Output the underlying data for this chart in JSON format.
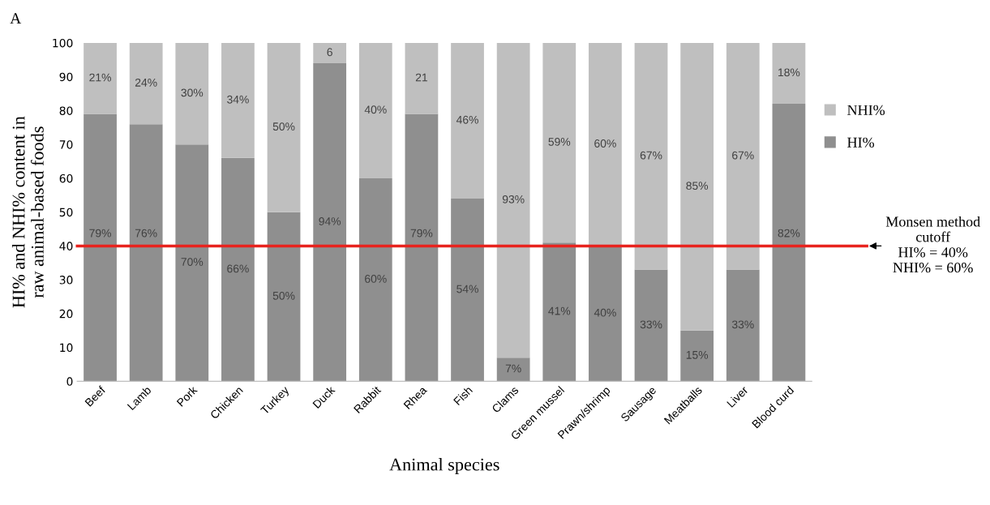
{
  "chart_data": {
    "type": "bar",
    "stacked": true,
    "ylabel": "HI% and NHI% content in\nraw animal-based foods",
    "xlabel": "Animal species",
    "categories": [
      "Beef",
      "Lamb",
      "Pork",
      "Chicken",
      "Turkey",
      "Duck",
      "Rabbit",
      "Rhea",
      "Fish",
      "Clams",
      "Green mussel",
      "Prawn/shrimp",
      "Sausage",
      "Meatballs",
      "Liver",
      "Blood curd"
    ],
    "series": [
      {
        "name": "HI%",
        "color": "#8f8f8f",
        "values": [
          79,
          76,
          70,
          66,
          50,
          94,
          60,
          79,
          54,
          7,
          41,
          40,
          33,
          15,
          33,
          82
        ],
        "value_labels": [
          "79%",
          "76%",
          "70%",
          "66%",
          "50%",
          "94%",
          "60%",
          "79%",
          "54%",
          "7%",
          "41%",
          "40%",
          "33%",
          "15%",
          "33%",
          "82%"
        ]
      },
      {
        "name": "NHI%",
        "color": "#bfbfbf",
        "values": [
          21,
          24,
          30,
          34,
          50,
          6,
          40,
          21,
          46,
          93,
          59,
          60,
          67,
          85,
          67,
          18
        ],
        "value_labels": [
          "21%",
          "24%",
          "30%",
          "34%",
          "50%",
          "6",
          "40%",
          "21",
          "46%",
          "93%",
          "59%",
          "60%",
          "67%",
          "85%",
          "67%",
          "18%"
        ]
      }
    ],
    "ylim": [
      0,
      100
    ],
    "yticks": [
      0,
      10,
      20,
      30,
      40,
      50,
      60,
      70,
      80,
      90,
      100
    ],
    "grid": false,
    "legend": "right",
    "ref_lines": [
      {
        "axis": "y",
        "value": 40,
        "label": "Monsen method\ncutoff\nHI% = 40%\nNHI% = 60%",
        "color": "#e8231e"
      }
    ],
    "annotations": [
      "A"
    ]
  }
}
